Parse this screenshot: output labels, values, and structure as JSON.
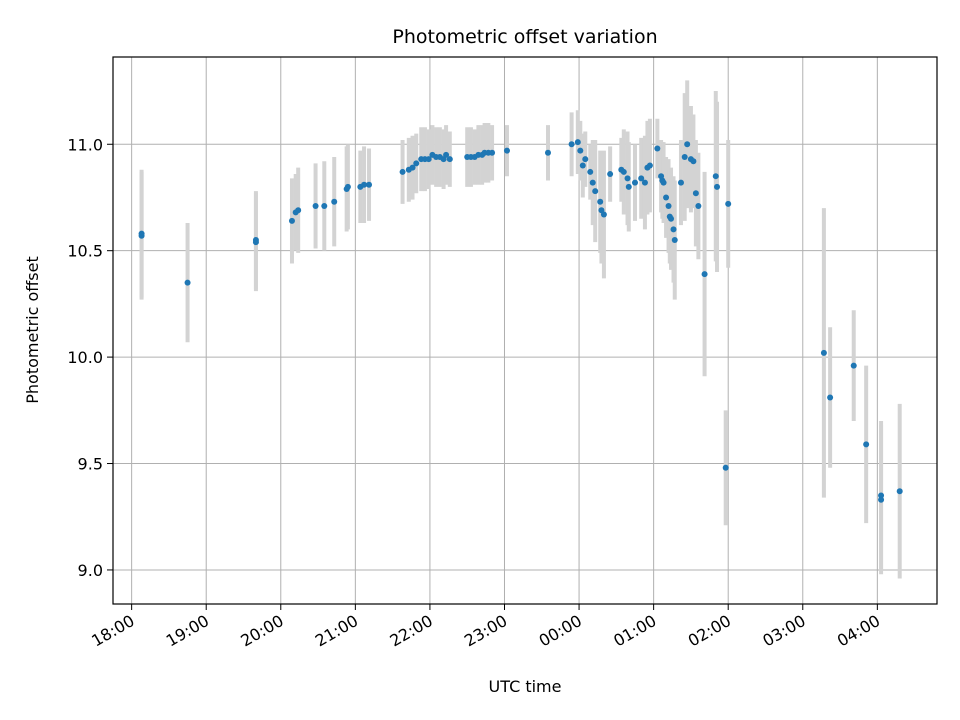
{
  "chart_data": {
    "type": "scatter",
    "title": "Photometric offset variation",
    "xlabel": "UTC time",
    "ylabel": "Photometric offset",
    "x_axis_type": "time",
    "x_range": [
      "17:45",
      "04:48"
    ],
    "y_range": [
      8.84,
      11.41
    ],
    "x_ticks": [
      "18:00",
      "19:00",
      "20:00",
      "21:00",
      "22:00",
      "23:00",
      "00:00",
      "01:00",
      "02:00",
      "03:00",
      "04:00"
    ],
    "y_ticks": [
      "9.0",
      "9.5",
      "10.0",
      "10.5",
      "11.0"
    ],
    "y_tick_values": [
      9.0,
      9.5,
      10.0,
      10.5,
      11.0
    ],
    "grid": true,
    "point_color": "#1f77b4",
    "errorbar_color": "#d3d3d3",
    "points": [
      {
        "x": "18:08",
        "y": 10.58,
        "err": 0.3
      },
      {
        "x": "18:08",
        "y": 10.57,
        "err": 0.3
      },
      {
        "x": "18:45",
        "y": 10.35,
        "err": 0.28
      },
      {
        "x": "19:40",
        "y": 10.55,
        "err": 0.23
      },
      {
        "x": "19:40",
        "y": 10.54,
        "err": 0.23
      },
      {
        "x": "20:09",
        "y": 10.64,
        "err": 0.2
      },
      {
        "x": "20:12",
        "y": 10.68,
        "err": 0.18
      },
      {
        "x": "20:14",
        "y": 10.69,
        "err": 0.2
      },
      {
        "x": "20:28",
        "y": 10.71,
        "err": 0.2
      },
      {
        "x": "20:35",
        "y": 10.71,
        "err": 0.21
      },
      {
        "x": "20:43",
        "y": 10.73,
        "err": 0.21
      },
      {
        "x": "20:53",
        "y": 10.79,
        "err": 0.2
      },
      {
        "x": "20:54",
        "y": 10.8,
        "err": 0.2
      },
      {
        "x": "21:04",
        "y": 10.8,
        "err": 0.17
      },
      {
        "x": "21:07",
        "y": 10.81,
        "err": 0.18
      },
      {
        "x": "21:11",
        "y": 10.81,
        "err": 0.17
      },
      {
        "x": "21:38",
        "y": 10.87,
        "err": 0.15
      },
      {
        "x": "21:43",
        "y": 10.88,
        "err": 0.15
      },
      {
        "x": "21:46",
        "y": 10.89,
        "err": 0.15
      },
      {
        "x": "21:49",
        "y": 10.91,
        "err": 0.14
      },
      {
        "x": "21:53",
        "y": 10.93,
        "err": 0.15
      },
      {
        "x": "21:56",
        "y": 10.93,
        "err": 0.15
      },
      {
        "x": "21:59",
        "y": 10.93,
        "err": 0.14
      },
      {
        "x": "22:02",
        "y": 10.95,
        "err": 0.14
      },
      {
        "x": "22:05",
        "y": 10.94,
        "err": 0.14
      },
      {
        "x": "22:08",
        "y": 10.94,
        "err": 0.14
      },
      {
        "x": "22:11",
        "y": 10.93,
        "err": 0.14
      },
      {
        "x": "22:13",
        "y": 10.95,
        "err": 0.14
      },
      {
        "x": "22:16",
        "y": 10.93,
        "err": 0.13
      },
      {
        "x": "22:30",
        "y": 10.94,
        "err": 0.14
      },
      {
        "x": "22:33",
        "y": 10.94,
        "err": 0.14
      },
      {
        "x": "22:36",
        "y": 10.94,
        "err": 0.13
      },
      {
        "x": "22:39",
        "y": 10.95,
        "err": 0.14
      },
      {
        "x": "22:42",
        "y": 10.95,
        "err": 0.14
      },
      {
        "x": "22:44",
        "y": 10.96,
        "err": 0.14
      },
      {
        "x": "22:47",
        "y": 10.96,
        "err": 0.14
      },
      {
        "x": "22:50",
        "y": 10.96,
        "err": 0.13
      },
      {
        "x": "23:02",
        "y": 10.97,
        "err": 0.12
      },
      {
        "x": "23:35",
        "y": 10.96,
        "err": 0.13
      },
      {
        "x": "23:54",
        "y": 11.0,
        "err": 0.15
      },
      {
        "x": "23:59",
        "y": 11.01,
        "err": 0.15
      },
      {
        "x": "00:01",
        "y": 10.97,
        "err": 0.14
      },
      {
        "x": "00:03",
        "y": 10.9,
        "err": 0.15
      },
      {
        "x": "00:05",
        "y": 10.93,
        "err": 0.13
      },
      {
        "x": "00:09",
        "y": 10.87,
        "err": 0.13
      },
      {
        "x": "00:11",
        "y": 10.82,
        "err": 0.2
      },
      {
        "x": "00:13",
        "y": 10.78,
        "err": 0.24
      },
      {
        "x": "00:17",
        "y": 10.73,
        "err": 0.24
      },
      {
        "x": "00:18",
        "y": 10.69,
        "err": 0.25
      },
      {
        "x": "00:20",
        "y": 10.67,
        "err": 0.3
      },
      {
        "x": "00:25",
        "y": 10.86,
        "err": 0.13
      },
      {
        "x": "00:34",
        "y": 10.88,
        "err": 0.15
      },
      {
        "x": "00:36",
        "y": 10.87,
        "err": 0.2
      },
      {
        "x": "00:39",
        "y": 10.84,
        "err": 0.22
      },
      {
        "x": "00:40",
        "y": 10.8,
        "err": 0.21
      },
      {
        "x": "00:45",
        "y": 10.82,
        "err": 0.18
      },
      {
        "x": "00:50",
        "y": 10.84,
        "err": 0.19
      },
      {
        "x": "00:53",
        "y": 10.82,
        "err": 0.22
      },
      {
        "x": "00:55",
        "y": 10.89,
        "err": 0.22
      },
      {
        "x": "00:57",
        "y": 10.9,
        "err": 0.22
      },
      {
        "x": "01:03",
        "y": 10.98,
        "err": 0.14
      },
      {
        "x": "01:06",
        "y": 10.85,
        "err": 0.17
      },
      {
        "x": "01:07",
        "y": 10.83,
        "err": 0.18
      },
      {
        "x": "01:08",
        "y": 10.82,
        "err": 0.19
      },
      {
        "x": "01:10",
        "y": 10.75,
        "err": 0.19
      },
      {
        "x": "01:12",
        "y": 10.71,
        "err": 0.22
      },
      {
        "x": "01:13",
        "y": 10.66,
        "err": 0.22
      },
      {
        "x": "01:14",
        "y": 10.65,
        "err": 0.24
      },
      {
        "x": "01:16",
        "y": 10.6,
        "err": 0.25
      },
      {
        "x": "01:17",
        "y": 10.55,
        "err": 0.28
      },
      {
        "x": "01:22",
        "y": 10.82,
        "err": 0.2
      },
      {
        "x": "01:25",
        "y": 10.94,
        "err": 0.3
      },
      {
        "x": "01:27",
        "y": 11.0,
        "err": 0.3
      },
      {
        "x": "01:30",
        "y": 10.93,
        "err": 0.25
      },
      {
        "x": "01:32",
        "y": 10.92,
        "err": 0.22
      },
      {
        "x": "01:34",
        "y": 10.77,
        "err": 0.25
      },
      {
        "x": "01:36",
        "y": 10.71,
        "err": 0.25
      },
      {
        "x": "01:41",
        "y": 10.39,
        "err": 0.48
      },
      {
        "x": "01:50",
        "y": 10.85,
        "err": 0.4
      },
      {
        "x": "01:51",
        "y": 10.8,
        "err": 0.4
      },
      {
        "x": "01:58",
        "y": 9.48,
        "err": 0.27
      },
      {
        "x": "02:00",
        "y": 10.72,
        "err": 0.3
      },
      {
        "x": "03:17",
        "y": 10.02,
        "err": 0.68
      },
      {
        "x": "03:22",
        "y": 9.81,
        "err": 0.33
      },
      {
        "x": "03:41",
        "y": 9.96,
        "err": 0.26
      },
      {
        "x": "03:51",
        "y": 9.59,
        "err": 0.37
      },
      {
        "x": "04:03",
        "y": 9.35,
        "err": 0.35
      },
      {
        "x": "04:03",
        "y": 9.33,
        "err": 0.35
      },
      {
        "x": "04:18",
        "y": 9.37,
        "err": 0.41
      }
    ]
  }
}
